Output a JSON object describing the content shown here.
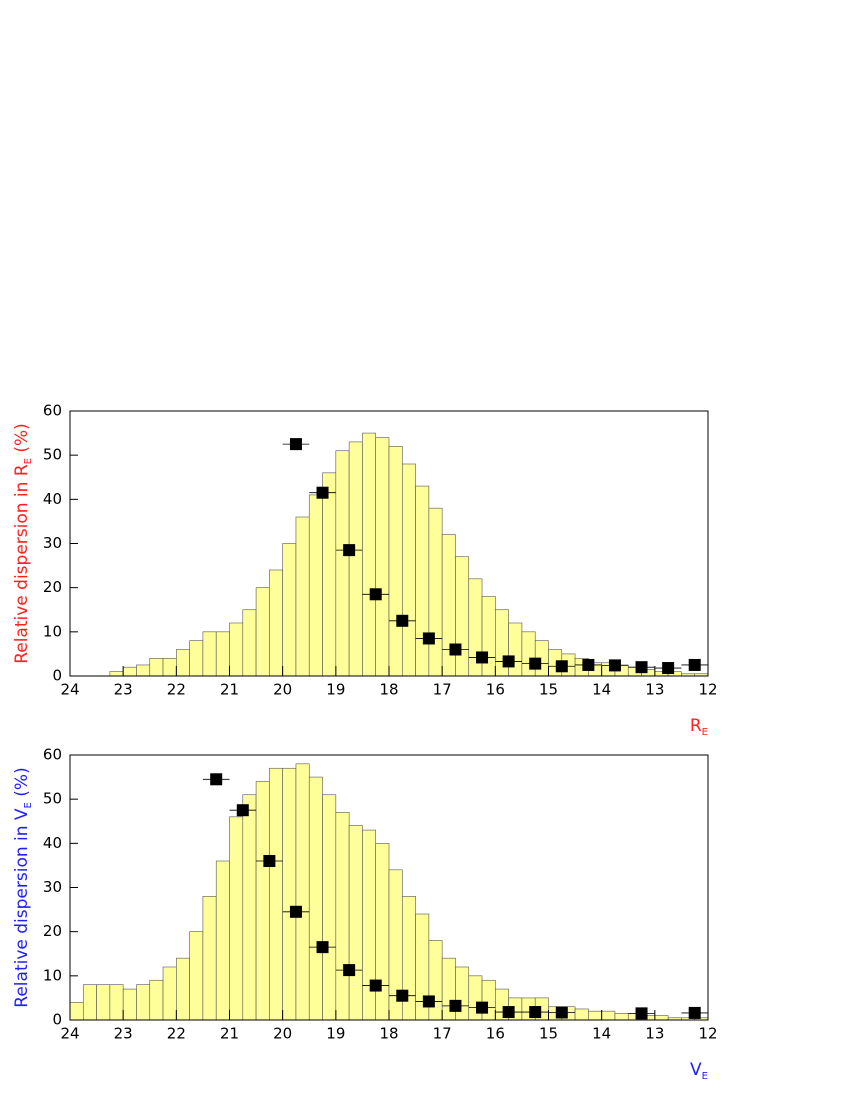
{
  "chart_data": [
    {
      "type": "histogram",
      "ylabel": [
        "Relative dispersion in R",
        "E",
        " (%)"
      ],
      "xlabel": [
        "R",
        "E"
      ],
      "label_color": "#ff2020",
      "xlim": [
        24,
        12
      ],
      "ylim": [
        0,
        60
      ],
      "xticks": [
        24,
        23,
        22,
        21,
        20,
        19,
        18,
        17,
        16,
        15,
        14,
        13,
        12
      ],
      "yticks": [
        0,
        10,
        20,
        30,
        40,
        50,
        60
      ],
      "color": "#ffff99",
      "bins": [
        24,
        23.75,
        23.5,
        23.25,
        23,
        22.75,
        22.5,
        22.25,
        22,
        21.75,
        21.5,
        21.25,
        21,
        20.75,
        20.5,
        20.25,
        20,
        19.75,
        19.5,
        19.25,
        19,
        18.75,
        18.5,
        18.25,
        18,
        17.75,
        17.5,
        17.25,
        17,
        16.75,
        16.5,
        16.25,
        16,
        15.75,
        15.5,
        15.25,
        15,
        14.75,
        14.5,
        14.25,
        14,
        13.75,
        13.5,
        13.25,
        13,
        12.75,
        12.5,
        12.25,
        12
      ],
      "counts": [
        0,
        0,
        0,
        1,
        2,
        2.5,
        4,
        4,
        6,
        8,
        10,
        10,
        12,
        15,
        20,
        24,
        30,
        36,
        41,
        46,
        51,
        53,
        55,
        54,
        52,
        48,
        43,
        38,
        32,
        27,
        22,
        18,
        15,
        12,
        10,
        8,
        6,
        5,
        4,
        3,
        3,
        2.5,
        2,
        1.5,
        1,
        1,
        0.5,
        0.5
      ],
      "points": {
        "color": "#000000",
        "x": [
          19.75,
          19.25,
          18.75,
          18.25,
          17.75,
          17.25,
          16.75,
          16.25,
          15.75,
          15.25,
          14.75,
          14.25,
          13.75,
          13.25,
          12.75,
          12.25
        ],
        "values": [
          52.5,
          41.5,
          28.5,
          18.5,
          12.5,
          8.5,
          6,
          4.2,
          3.3,
          2.8,
          2.2,
          2.5,
          2.4,
          2,
          1.8,
          2.5
        ],
        "xerr": [
          0.25,
          0.25,
          0.25,
          0.25,
          0.25,
          0.25,
          0.25,
          0.25,
          0.25,
          0.25,
          0.25,
          0.25,
          0.25,
          0.25,
          0.25,
          0.25
        ]
      }
    },
    {
      "type": "histogram",
      "ylabel": [
        "Relative dispersion in V",
        "E",
        " (%)"
      ],
      "xlabel": [
        "V",
        "E"
      ],
      "label_color": "#2020ff",
      "xlim": [
        24,
        12
      ],
      "ylim": [
        0,
        60
      ],
      "xticks": [
        24,
        23,
        22,
        21,
        20,
        19,
        18,
        17,
        16,
        15,
        14,
        13,
        12
      ],
      "yticks": [
        0,
        10,
        20,
        30,
        40,
        50,
        60
      ],
      "color": "#ffff99",
      "bins": [
        24,
        23.75,
        23.5,
        23.25,
        23,
        22.75,
        22.5,
        22.25,
        22,
        21.75,
        21.5,
        21.25,
        21,
        20.75,
        20.5,
        20.25,
        20,
        19.75,
        19.5,
        19.25,
        19,
        18.75,
        18.5,
        18.25,
        18,
        17.75,
        17.5,
        17.25,
        17,
        16.75,
        16.5,
        16.25,
        16,
        15.75,
        15.5,
        15.25,
        15,
        14.75,
        14.5,
        14.25,
        14,
        13.75,
        13.5,
        13.25,
        13,
        12.75,
        12.5,
        12.25,
        12
      ],
      "counts": [
        4,
        8,
        8,
        8,
        7,
        8,
        9,
        12,
        14,
        20,
        28,
        36,
        46,
        51,
        54,
        57,
        57,
        58,
        55,
        51,
        47,
        44,
        43,
        40,
        34,
        28,
        24,
        18,
        14,
        12,
        10,
        9,
        7,
        5,
        5,
        5,
        3,
        3,
        2.5,
        2,
        2,
        1.5,
        1.5,
        1,
        1,
        0.5,
        0.5,
        0.5
      ],
      "points": {
        "color": "#000000",
        "x": [
          21.25,
          20.75,
          20.25,
          19.75,
          19.25,
          18.75,
          18.25,
          17.75,
          17.25,
          16.75,
          16.25,
          15.75,
          15.25,
          14.75,
          13.25,
          12.25
        ],
        "values": [
          54.5,
          47.5,
          36,
          24.5,
          16.5,
          11.3,
          7.8,
          5.5,
          4.2,
          3.2,
          2.8,
          1.8,
          1.8,
          1.7,
          1.5,
          1.6
        ],
        "xerr": [
          0.25,
          0.25,
          0.25,
          0.25,
          0.25,
          0.25,
          0.25,
          0.25,
          0.25,
          0.25,
          0.25,
          0.25,
          0.25,
          0.25,
          0.25,
          0.25
        ]
      }
    }
  ]
}
